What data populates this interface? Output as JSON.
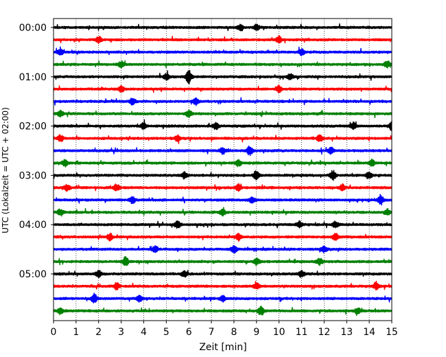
{
  "chart_data": {
    "type": "line",
    "title": "",
    "xlabel": "Zeit  [min]",
    "ylabel": "UTC (Lokalzeit = UTC + 02:00)",
    "xlim": [
      0,
      15
    ],
    "x_ticks": [
      "0",
      "1",
      "2",
      "3",
      "4",
      "5",
      "6",
      "7",
      "8",
      "9",
      "10",
      "11",
      "12",
      "13",
      "14",
      "15"
    ],
    "y_ticks": [
      {
        "label": "00:00",
        "trace": 0
      },
      {
        "label": "01:00",
        "trace": 4
      },
      {
        "label": "02:00",
        "trace": 8
      },
      {
        "label": "03:00",
        "trace": 12
      },
      {
        "label": "04:00",
        "trace": 16
      },
      {
        "label": "05:00",
        "trace": 20
      }
    ],
    "grid": "vertical dotted lines at each minute",
    "trace_minutes": 15,
    "trace_count": 24,
    "color_cycle": [
      "#000000",
      "#ff0000",
      "#0000ff",
      "#008000"
    ],
    "series": [
      {
        "start": "00:00",
        "color": "#000000",
        "events": [
          {
            "t": 8.3,
            "amp": 2
          },
          {
            "t": 9.0,
            "amp": 2
          }
        ]
      },
      {
        "start": "00:15",
        "color": "#ff0000",
        "events": [
          {
            "t": 2.0,
            "amp": 2
          },
          {
            "t": 10.0,
            "amp": 2
          }
        ]
      },
      {
        "start": "00:30",
        "color": "#0000ff",
        "events": [
          {
            "t": 0.3,
            "amp": 2
          },
          {
            "t": 11.0,
            "amp": 2
          }
        ]
      },
      {
        "start": "00:45",
        "color": "#008000",
        "events": [
          {
            "t": 3.0,
            "amp": 2
          },
          {
            "t": 14.8,
            "amp": 2
          }
        ]
      },
      {
        "start": "01:00",
        "color": "#000000",
        "events": [
          {
            "t": 6.0,
            "amp": 4
          },
          {
            "t": 5.0,
            "amp": 2
          },
          {
            "t": 10.5,
            "amp": 2
          }
        ]
      },
      {
        "start": "01:15",
        "color": "#ff0000",
        "events": [
          {
            "t": 3.0,
            "amp": 2
          },
          {
            "t": 10.0,
            "amp": 2
          }
        ]
      },
      {
        "start": "01:30",
        "color": "#0000ff",
        "events": [
          {
            "t": 3.5,
            "amp": 2
          },
          {
            "t": 6.3,
            "amp": 2
          }
        ]
      },
      {
        "start": "01:45",
        "color": "#008000",
        "events": [
          {
            "t": 0.3,
            "amp": 2
          },
          {
            "t": 6.0,
            "amp": 2
          }
        ]
      },
      {
        "start": "02:00",
        "color": "#000000",
        "events": [
          {
            "t": 4.0,
            "amp": 2
          },
          {
            "t": 7.2,
            "amp": 2
          },
          {
            "t": 13.3,
            "amp": 2
          },
          {
            "t": 15.0,
            "amp": 3
          }
        ]
      },
      {
        "start": "02:15",
        "color": "#ff0000",
        "events": [
          {
            "t": 0.3,
            "amp": 2
          },
          {
            "t": 5.5,
            "amp": 2
          },
          {
            "t": 11.8,
            "amp": 2
          }
        ]
      },
      {
        "start": "02:30",
        "color": "#0000ff",
        "events": [
          {
            "t": 7.5,
            "amp": 2
          },
          {
            "t": 8.7,
            "amp": 3
          },
          {
            "t": 12.3,
            "amp": 2
          }
        ]
      },
      {
        "start": "02:45",
        "color": "#008000",
        "events": [
          {
            "t": 0.5,
            "amp": 2
          },
          {
            "t": 8.2,
            "amp": 2
          },
          {
            "t": 14.1,
            "amp": 2
          }
        ]
      },
      {
        "start": "03:00",
        "color": "#000000",
        "events": [
          {
            "t": 5.8,
            "amp": 2
          },
          {
            "t": 9.0,
            "amp": 3
          },
          {
            "t": 12.4,
            "amp": 3
          },
          {
            "t": 14.0,
            "amp": 2
          }
        ]
      },
      {
        "start": "03:15",
        "color": "#ff0000",
        "events": [
          {
            "t": 0.6,
            "amp": 2
          },
          {
            "t": 2.8,
            "amp": 2
          },
          {
            "t": 8.2,
            "amp": 2
          },
          {
            "t": 12.8,
            "amp": 2
          }
        ]
      },
      {
        "start": "03:30",
        "color": "#0000ff",
        "events": [
          {
            "t": 3.5,
            "amp": 2
          },
          {
            "t": 8.8,
            "amp": 2
          },
          {
            "t": 14.5,
            "amp": 3
          }
        ]
      },
      {
        "start": "03:45",
        "color": "#008000",
        "events": [
          {
            "t": 0.3,
            "amp": 2
          },
          {
            "t": 7.5,
            "amp": 2
          },
          {
            "t": 14.8,
            "amp": 2
          }
        ]
      },
      {
        "start": "04:00",
        "color": "#000000",
        "events": [
          {
            "t": 5.5,
            "amp": 2
          },
          {
            "t": 10.9,
            "amp": 2
          },
          {
            "t": 12.5,
            "amp": 2
          }
        ]
      },
      {
        "start": "04:15",
        "color": "#ff0000",
        "events": [
          {
            "t": 2.5,
            "amp": 2
          },
          {
            "t": 8.2,
            "amp": 2
          },
          {
            "t": 12.5,
            "amp": 2
          }
        ]
      },
      {
        "start": "04:30",
        "color": "#0000ff",
        "events": [
          {
            "t": 4.5,
            "amp": 2
          },
          {
            "t": 8.0,
            "amp": 2
          },
          {
            "t": 12.0,
            "amp": 2
          }
        ]
      },
      {
        "start": "04:45",
        "color": "#008000",
        "events": [
          {
            "t": 3.2,
            "amp": 3
          },
          {
            "t": 9.0,
            "amp": 2
          },
          {
            "t": 11.8,
            "amp": 2
          }
        ]
      },
      {
        "start": "05:00",
        "color": "#000000",
        "events": [
          {
            "t": 2.0,
            "amp": 2
          },
          {
            "t": 5.8,
            "amp": 2
          },
          {
            "t": 11.0,
            "amp": 2
          }
        ]
      },
      {
        "start": "05:15",
        "color": "#ff0000",
        "events": [
          {
            "t": 2.8,
            "amp": 2
          },
          {
            "t": 9.0,
            "amp": 2
          },
          {
            "t": 14.3,
            "amp": 2
          }
        ]
      },
      {
        "start": "05:30",
        "color": "#0000ff",
        "events": [
          {
            "t": 1.8,
            "amp": 3
          },
          {
            "t": 3.8,
            "amp": 2
          },
          {
            "t": 7.5,
            "amp": 2
          }
        ]
      },
      {
        "start": "05:45",
        "color": "#008000",
        "events": [
          {
            "t": 0.3,
            "amp": 2
          },
          {
            "t": 9.2,
            "amp": 3
          },
          {
            "t": 13.5,
            "amp": 2
          }
        ]
      }
    ]
  }
}
